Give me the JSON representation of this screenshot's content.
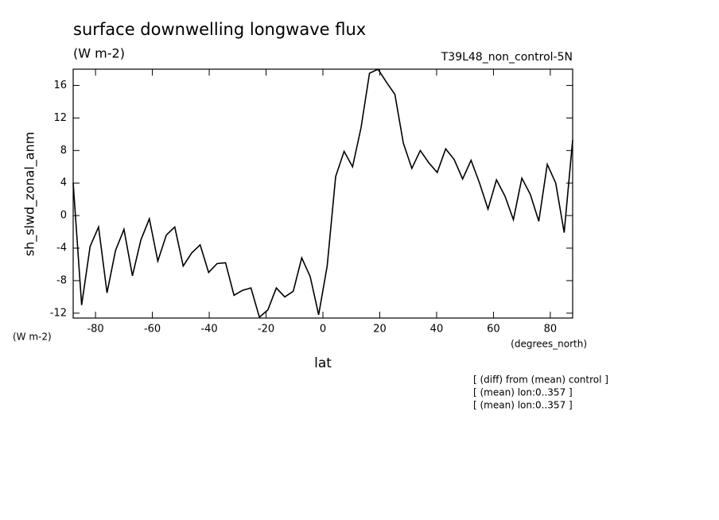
{
  "chart_data": {
    "type": "line",
    "title": "surface downwelling longwave flux",
    "units": "(W m-2)",
    "subtitle_right": "T39L48_non_control-5N",
    "ylabel": "sh_slwd_zonal_anm",
    "yunits": "(W m-2)",
    "xlabel": "lat",
    "xunits": "(degrees_north)",
    "notes": [
      "[ (diff) from (mean) control ]",
      "[ (mean) lon:0..357 ]",
      "[ (mean) lon:0..357 ]"
    ],
    "xlim": [
      -87.86,
      87.86
    ],
    "ylim": [
      -12.6,
      18
    ],
    "xticks": [
      -80,
      -60,
      -40,
      -20,
      0,
      20,
      40,
      60,
      80
    ],
    "yticks": [
      -12,
      -8,
      -4,
      0,
      4,
      8,
      12,
      16
    ],
    "series": [
      {
        "color": "#000000",
        "x": [
          -87.86,
          -84.88,
          -81.9,
          -78.93,
          -75.95,
          -72.97,
          -69.99,
          -67.01,
          -64.04,
          -61.06,
          -58.08,
          -55.1,
          -52.12,
          -49.15,
          -46.17,
          -43.19,
          -40.21,
          -37.23,
          -34.26,
          -31.28,
          -28.3,
          -25.32,
          -22.34,
          -19.37,
          -16.39,
          -13.41,
          -10.43,
          -7.45,
          -4.48,
          -1.5,
          1.5,
          4.48,
          7.45,
          10.43,
          13.41,
          16.39,
          19.37,
          22.34,
          25.32,
          28.3,
          31.28,
          34.26,
          37.23,
          40.21,
          43.19,
          46.17,
          49.15,
          52.12,
          55.1,
          58.08,
          61.06,
          64.04,
          67.01,
          69.99,
          72.97,
          75.95,
          78.93,
          81.9,
          84.88,
          87.86
        ],
        "values": [
          4.0,
          -11.0,
          -3.8,
          -1.4,
          -9.5,
          -4.3,
          -1.7,
          -7.4,
          -3.0,
          -0.4,
          -5.6,
          -2.4,
          -1.4,
          -6.2,
          -4.6,
          -3.6,
          -7.0,
          -5.9,
          -5.8,
          -9.8,
          -9.2,
          -8.9,
          -12.5,
          -11.6,
          -8.9,
          -10.0,
          -9.3,
          -5.2,
          -7.5,
          -12.2,
          -6.2,
          4.8,
          7.9,
          6.0,
          10.8,
          17.5,
          18.0,
          16.4,
          14.9,
          8.9,
          5.8,
          8.0,
          6.5,
          5.3,
          8.2,
          6.9,
          4.5,
          6.8,
          4.0,
          0.8,
          4.4,
          2.4,
          -0.5,
          4.6,
          2.6,
          -0.7,
          6.3,
          4.0,
          -2.1,
          9.3
        ]
      }
    ]
  }
}
